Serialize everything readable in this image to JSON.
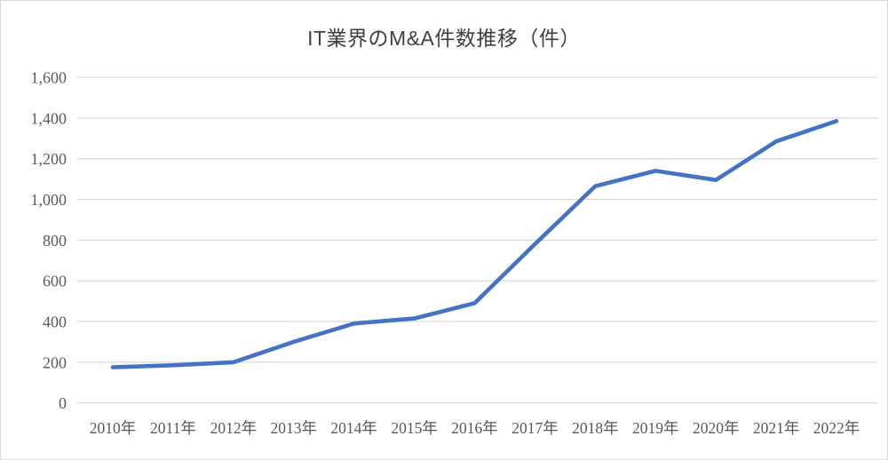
{
  "chart_data": {
    "type": "line",
    "title": "IT業界のM&A件数推移（件）",
    "categories": [
      "2010年",
      "2011年",
      "2012年",
      "2013年",
      "2014年",
      "2015年",
      "2016年",
      "2017年",
      "2018年",
      "2019年",
      "2020年",
      "2021年",
      "2022年"
    ],
    "values": [
      175,
      185,
      200,
      300,
      390,
      415,
      490,
      780,
      1065,
      1140,
      1095,
      1285,
      1385
    ],
    "ylim": [
      0,
      1600
    ],
    "ytick_step": 200,
    "yticks": [
      0,
      200,
      400,
      600,
      800,
      1000,
      1200,
      1400,
      1600
    ],
    "ytick_labels": [
      "0",
      "200",
      "400",
      "600",
      "800",
      "1,000",
      "1,200",
      "1,400",
      "1,600"
    ],
    "xlabel": "",
    "ylabel": "",
    "legend": "none",
    "grid": "horizontal",
    "colors": {
      "line": "#4472C4",
      "grid": "#D9D9D9",
      "tick_text": "#595959",
      "title_text": "#404040",
      "background": "#FFFFFF",
      "border": "#D9D9D9"
    }
  }
}
